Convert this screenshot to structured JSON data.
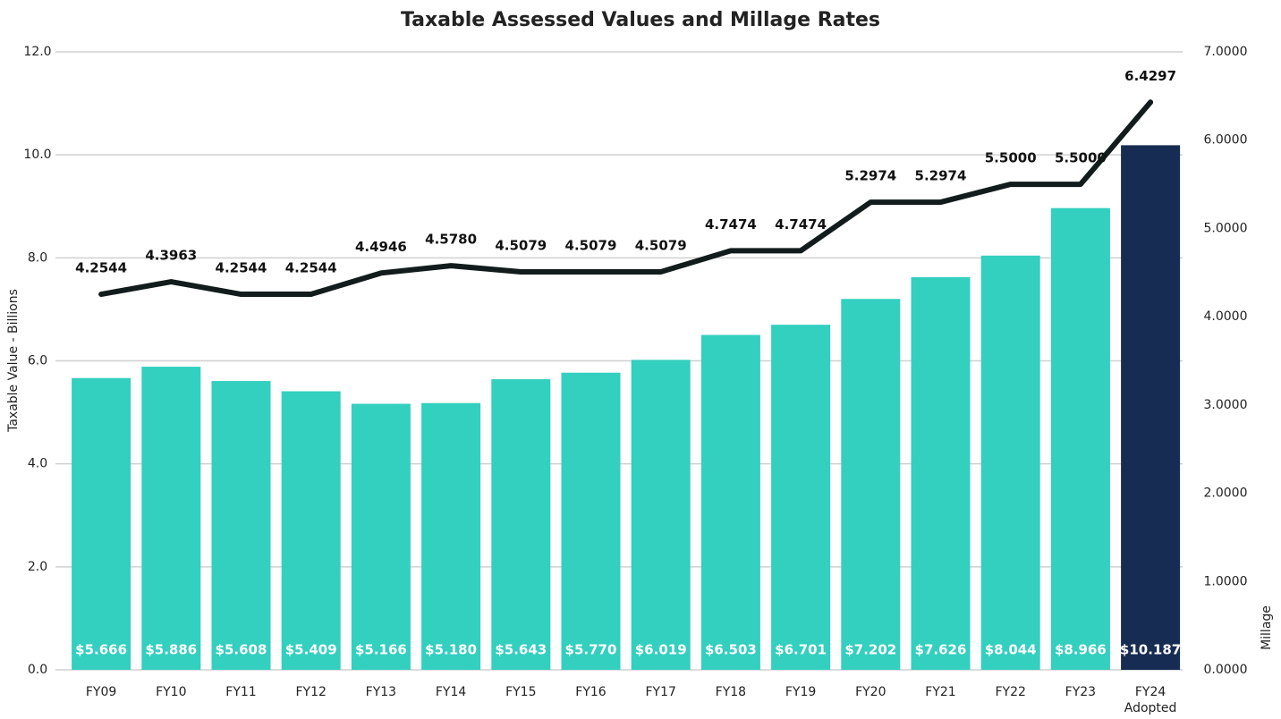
{
  "chart_data": {
    "type": "bar",
    "title": "Taxable Assessed Values and Millage Rates",
    "y_label": "Taxable Value - Billions",
    "y2_label": "Millage",
    "categories": [
      "FY09",
      "FY10",
      "FY11",
      "FY12",
      "FY13",
      "FY14",
      "FY15",
      "FY16",
      "FY17",
      "FY18",
      "FY19",
      "FY20",
      "FY21",
      "FY22",
      "FY23",
      "FY24 Adopted"
    ],
    "series": [
      {
        "type": "bar",
        "colors": [
          "#33cfbf",
          "#33cfbf",
          "#33cfbf",
          "#33cfbf",
          "#33cfbf",
          "#33cfbf",
          "#33cfbf",
          "#33cfbf",
          "#33cfbf",
          "#33cfbf",
          "#33cfbf",
          "#33cfbf",
          "#33cfbf",
          "#33cfbf",
          "#33cfbf",
          "#172c52"
        ],
        "values": [
          5.666,
          5.886,
          5.608,
          5.409,
          5.166,
          5.18,
          5.643,
          5.77,
          6.019,
          6.503,
          6.701,
          7.202,
          7.626,
          8.044,
          8.966,
          10.187
        ],
        "value_labels": [
          "$5.666",
          "$5.886",
          "$5.608",
          "$5.409",
          "$5.166",
          "$5.180",
          "$5.643",
          "$5.770",
          "$6.019",
          "$6.503",
          "$6.701",
          "$7.202",
          "$7.626",
          "$8.044",
          "$8.966",
          "$10.187"
        ]
      },
      {
        "type": "line",
        "axis": "y2",
        "color": "#121c1c",
        "values": [
          4.2544,
          4.3963,
          4.2544,
          4.2544,
          4.4946,
          4.578,
          4.5079,
          4.5079,
          4.5079,
          4.7474,
          4.7474,
          5.2974,
          5.2974,
          5.5,
          5.5,
          6.4297
        ],
        "value_labels": [
          "4.2544",
          "4.3963",
          "4.2544",
          "4.2544",
          "4.4946",
          "4.5780",
          "4.5079",
          "4.5079",
          "4.5079",
          "4.7474",
          "4.7474",
          "5.2974",
          "5.2974",
          "5.5000",
          "5.5000",
          "6.4297"
        ]
      }
    ],
    "ylim": [
      0,
      12
    ],
    "yticks": [
      {
        "value": 0,
        "label": "0.0"
      },
      {
        "value": 2,
        "label": "2.0"
      },
      {
        "value": 4,
        "label": "4.0"
      },
      {
        "value": 6,
        "label": "6.0"
      },
      {
        "value": 8,
        "label": "8.0"
      },
      {
        "value": 10,
        "label": "10.0"
      },
      {
        "value": 12,
        "label": "12.0"
      }
    ],
    "y2lim": [
      0,
      7
    ],
    "y2ticks": [
      {
        "value": 0,
        "label": "0.0000"
      },
      {
        "value": 1,
        "label": "1.0000"
      },
      {
        "value": 2,
        "label": "2.0000"
      },
      {
        "value": 3,
        "label": "3.0000"
      },
      {
        "value": 4,
        "label": "4.0000"
      },
      {
        "value": 5,
        "label": "5.0000"
      },
      {
        "value": 6,
        "label": "6.0000"
      },
      {
        "value": 7,
        "label": "7.0000"
      }
    ],
    "grid": true
  }
}
